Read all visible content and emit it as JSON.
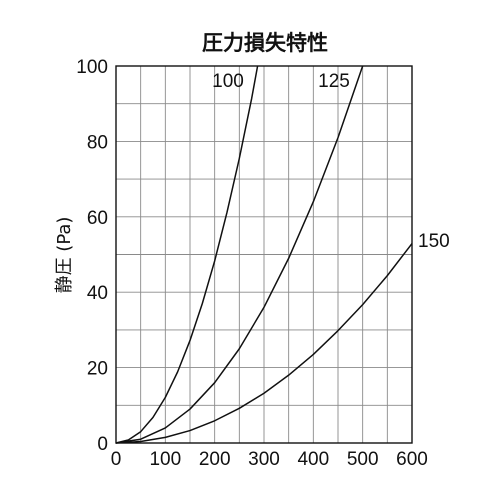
{
  "chart_data": {
    "type": "line",
    "title": "圧力損失特性",
    "xlabel": "",
    "ylabel": "静圧 (Pa)",
    "xlim": [
      0,
      600
    ],
    "ylim": [
      0,
      100
    ],
    "xticks": [
      0,
      100,
      200,
      300,
      400,
      500,
      600
    ],
    "yticks": [
      0,
      20,
      40,
      60,
      80,
      100
    ],
    "x_tick_labels": [
      "0",
      "100",
      "200",
      "300",
      "400",
      "500",
      "600"
    ],
    "y_tick_labels": [
      "0",
      "20",
      "40",
      "60",
      "80",
      "100"
    ],
    "grid": true,
    "series": [
      {
        "name": "100",
        "color": "#111111",
        "x": [
          0,
          25,
          50,
          75,
          100,
          125,
          150,
          175,
          200,
          225,
          250,
          275,
          287
        ],
        "y": [
          0,
          0.8,
          3.0,
          6.8,
          12.1,
          18.9,
          27.2,
          37.0,
          48.3,
          61.2,
          75.5,
          91.4,
          100
        ]
      },
      {
        "name": "125",
        "color": "#111111",
        "x": [
          0,
          50,
          100,
          150,
          200,
          250,
          300,
          350,
          400,
          450,
          500
        ],
        "y": [
          0,
          1.0,
          4.0,
          9.0,
          16.0,
          25.0,
          36.0,
          49.0,
          64.0,
          81.0,
          100
        ]
      },
      {
        "name": "150",
        "color": "#111111",
        "x": [
          0,
          50,
          100,
          150,
          200,
          250,
          300,
          350,
          400,
          450,
          500,
          550,
          600
        ],
        "y": [
          0,
          0.4,
          1.5,
          3.3,
          5.9,
          9.2,
          13.2,
          18.0,
          23.5,
          29.8,
          36.7,
          44.4,
          52.9
        ]
      }
    ]
  }
}
